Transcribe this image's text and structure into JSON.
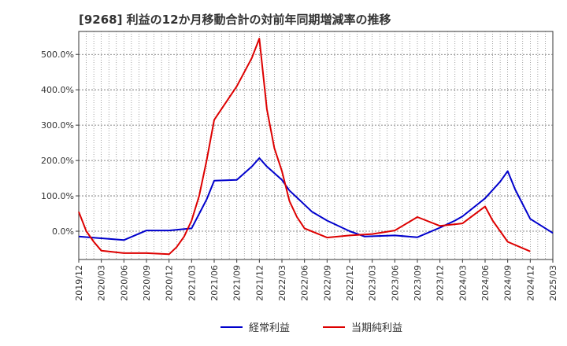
{
  "chart_data": {
    "type": "line",
    "title": "[9268]  利益の12か月移動合計の対前年同期増減率の推移",
    "xlabel": "",
    "ylabel": "",
    "ylim": [
      -80,
      565
    ],
    "y_ticks": [
      0,
      100,
      200,
      300,
      400,
      500
    ],
    "y_tick_labels": [
      "0.0%",
      "100.0%",
      "200.0%",
      "300.0%",
      "400.0%",
      "500.0%"
    ],
    "x_ticks": [
      "2019/12",
      "2020/03",
      "2020/06",
      "2020/09",
      "2020/12",
      "2021/03",
      "2021/06",
      "2021/09",
      "2021/12",
      "2022/03",
      "2022/06",
      "2022/09",
      "2022/12",
      "2023/03",
      "2023/06",
      "2023/09",
      "2023/12",
      "2024/03",
      "2024/06",
      "2024/09",
      "2024/12",
      "2025/03"
    ],
    "x_range_months": [
      0,
      63
    ],
    "grid": true,
    "legend_position": "bottom",
    "series": [
      {
        "name": "経常利益",
        "color": "#0000cc",
        "points": [
          [
            0,
            -15
          ],
          [
            3,
            -20
          ],
          [
            6,
            -25
          ],
          [
            9,
            2
          ],
          [
            12,
            2
          ],
          [
            15,
            8
          ],
          [
            17,
            90
          ],
          [
            18,
            143
          ],
          [
            21,
            145
          ],
          [
            23,
            183
          ],
          [
            24,
            207
          ],
          [
            25,
            183
          ],
          [
            27,
            145
          ],
          [
            28,
            115
          ],
          [
            30,
            75
          ],
          [
            31,
            55
          ],
          [
            33,
            30
          ],
          [
            36,
            0
          ],
          [
            38,
            -15
          ],
          [
            42,
            -12
          ],
          [
            45,
            -17
          ],
          [
            48,
            10
          ],
          [
            50,
            30
          ],
          [
            51,
            42
          ],
          [
            54,
            93
          ],
          [
            56,
            140
          ],
          [
            57,
            170
          ],
          [
            58,
            118
          ],
          [
            60,
            35
          ],
          [
            63,
            -5
          ]
        ]
      },
      {
        "name": "当期純利益",
        "color": "#dd0000",
        "points": [
          [
            0,
            55
          ],
          [
            1,
            0
          ],
          [
            2,
            -30
          ],
          [
            3,
            -55
          ],
          [
            6,
            -62
          ],
          [
            9,
            -62
          ],
          [
            12,
            -65
          ],
          [
            13,
            -45
          ],
          [
            14,
            -15
          ],
          [
            15,
            30
          ],
          [
            16,
            100
          ],
          [
            17,
            200
          ],
          [
            18,
            315
          ],
          [
            21,
            410
          ],
          [
            23,
            490
          ],
          [
            24,
            545
          ],
          [
            25,
            345
          ],
          [
            26,
            235
          ],
          [
            27,
            170
          ],
          [
            28,
            85
          ],
          [
            29,
            40
          ],
          [
            30,
            8
          ],
          [
            33,
            -18
          ],
          [
            36,
            -12
          ],
          [
            39,
            -8
          ],
          [
            42,
            2
          ],
          [
            45,
            40
          ],
          [
            48,
            15
          ],
          [
            51,
            22
          ],
          [
            54,
            70
          ],
          [
            55,
            30
          ],
          [
            57,
            -30
          ],
          [
            60,
            -57
          ]
        ]
      }
    ]
  }
}
